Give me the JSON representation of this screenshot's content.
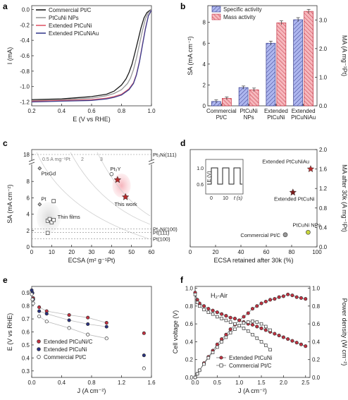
{
  "chart_data": [
    {
      "panel": "a",
      "type": "line",
      "xlabel": "E (V vs RHE)",
      "ylabel": "I (mA)",
      "xlim": [
        0.2,
        1.0
      ],
      "ylim": [
        -1.25,
        0.05
      ],
      "xticks": [
        "0.2",
        "0.4",
        "0.6",
        "0.8",
        "1.0"
      ],
      "yticks": [
        "0.0",
        "-0.2",
        "-0.4",
        "-0.6",
        "-0.8",
        "-1.0",
        "-1.2"
      ],
      "legend": "top-left",
      "series": [
        {
          "name": "Commercial Pt/C",
          "color": "#1a1a1a",
          "x": [
            0.2,
            0.4,
            0.6,
            0.7,
            0.75,
            0.8,
            0.83,
            0.85,
            0.87,
            0.89,
            0.91,
            0.93,
            0.95,
            0.97,
            0.99,
            1.0
          ],
          "y": [
            -1.17,
            -1.16,
            -1.13,
            -1.1,
            -1.06,
            -0.98,
            -0.9,
            -0.82,
            -0.71,
            -0.56,
            -0.4,
            -0.24,
            -0.11,
            -0.04,
            -0.01,
            0.0
          ]
        },
        {
          "name": "PtCuNi NPs",
          "color": "#999999",
          "x": [
            0.2,
            0.4,
            0.6,
            0.7,
            0.75,
            0.8,
            0.84,
            0.86,
            0.88,
            0.9,
            0.92,
            0.94,
            0.96,
            0.98,
            1.0
          ],
          "y": [
            -1.18,
            -1.17,
            -1.15,
            -1.12,
            -1.09,
            -1.04,
            -0.96,
            -0.89,
            -0.78,
            -0.63,
            -0.45,
            -0.27,
            -0.12,
            -0.04,
            0.0
          ]
        },
        {
          "name": "Extended PtCuNi",
          "color": "#e05a6a",
          "x": [
            0.2,
            0.4,
            0.6,
            0.7,
            0.75,
            0.8,
            0.85,
            0.88,
            0.9,
            0.92,
            0.94,
            0.96,
            0.98,
            1.0
          ],
          "y": [
            -1.19,
            -1.18,
            -1.17,
            -1.15,
            -1.13,
            -1.1,
            -1.03,
            -0.95,
            -0.84,
            -0.67,
            -0.45,
            -0.24,
            -0.08,
            -0.01
          ]
        },
        {
          "name": "Extended PtCuNiAu",
          "color": "#3a3f8f",
          "x": [
            0.2,
            0.4,
            0.6,
            0.7,
            0.75,
            0.8,
            0.85,
            0.88,
            0.9,
            0.92,
            0.94,
            0.96,
            0.98,
            1.0
          ],
          "y": [
            -1.2,
            -1.19,
            -1.18,
            -1.16,
            -1.14,
            -1.11,
            -1.04,
            -0.96,
            -0.85,
            -0.68,
            -0.46,
            -0.25,
            -0.08,
            -0.01
          ]
        }
      ]
    },
    {
      "panel": "b",
      "type": "bar",
      "ylabel": "SA (mA cm⁻²)",
      "y2label": "MA (A mg⁻¹Pt)",
      "ylim": [
        0,
        9.6
      ],
      "y2lim": [
        0,
        3.5
      ],
      "yticks": [
        "0",
        "2",
        "4",
        "6",
        "8"
      ],
      "y2ticks": [
        "0.0",
        "1.0",
        "2.0",
        "3.0"
      ],
      "categories": [
        [
          "Commercial",
          "Pt/C"
        ],
        [
          "PtCuNi",
          "NPs"
        ],
        [
          "Extended",
          "PtCuNi"
        ],
        [
          "Extended",
          "PtCuNiAu"
        ]
      ],
      "legend": "top-left",
      "series": [
        {
          "name": "Specific activity",
          "axis": "left",
          "values": [
            0.42,
            1.75,
            6.0,
            8.25
          ],
          "errors": [
            0.15,
            0.15,
            0.2,
            0.2
          ],
          "color": "#9aa5e8",
          "hatch": "#3a3f8f"
        },
        {
          "name": "Mass activity",
          "axis": "right",
          "values": [
            0.26,
            0.56,
            2.9,
            3.3
          ],
          "errors": [
            0.05,
            0.06,
            0.07,
            0.07
          ],
          "color": "#f2a5ab",
          "hatch": "#c43040"
        }
      ]
    },
    {
      "panel": "c",
      "type": "scatter",
      "xlabel": "ECSA (m² g⁻¹Pt)",
      "ylabel": "SA (mA cm⁻²)",
      "xlim": [
        0,
        60
      ],
      "ylim": [
        0,
        10
      ],
      "upper_break_value": "18",
      "xticks": [
        "0",
        "10",
        "20",
        "30",
        "40",
        "50",
        "60"
      ],
      "yticks": [
        "0",
        "2",
        "4",
        "6",
        "8"
      ],
      "iso_labels": [
        "0.5 A mg⁻¹Pt",
        "2",
        "3"
      ],
      "reference_lines": [
        {
          "label": "Pt₃Ni(111)",
          "y": 18
        },
        {
          "label": "Pt₃Ni(100)",
          "y": 2.2
        },
        {
          "label": "Pt(111)",
          "y": 1.75
        },
        {
          "label": "Pt(100)",
          "y": 1.0
        }
      ],
      "regions": [
        {
          "label": "Thin films",
          "x": 8,
          "y": 3.8
        },
        {
          "label": "This work",
          "x": 45,
          "y": 7.5
        }
      ],
      "points": [
        {
          "label": "PtxGd",
          "x": 4,
          "y": 9.6,
          "marker": "diamond"
        },
        {
          "label": "Pt",
          "x": 4,
          "y": 5.2,
          "marker": "diamond"
        },
        {
          "label": "Pt₃Y",
          "x": 40,
          "y": 8.9,
          "marker": "circle"
        },
        {
          "label": "",
          "x": 43,
          "y": 8.2,
          "marker": "star"
        },
        {
          "label": "",
          "x": 47,
          "y": 6.1,
          "marker": "star"
        },
        {
          "label": "",
          "x": 8,
          "y": 3.2,
          "marker": "square"
        },
        {
          "label": "",
          "x": 9,
          "y": 3.4,
          "marker": "square"
        },
        {
          "label": "",
          "x": 10,
          "y": 3.0,
          "marker": "square"
        },
        {
          "label": "",
          "x": 11,
          "y": 5.6,
          "marker": "square"
        },
        {
          "label": "",
          "x": 8,
          "y": 1.7,
          "marker": "square"
        },
        {
          "label": "",
          "x": 11,
          "y": 3.3,
          "marker": "square"
        }
      ]
    },
    {
      "panel": "d",
      "type": "scatter",
      "xlabel": "ECSA retained after 30k (%)",
      "ylabel": "MA after 30k (A mg⁻¹Pt)",
      "xlim": [
        0,
        100
      ],
      "ylim": [
        0,
        2.0
      ],
      "xticks": [
        "0",
        "20",
        "40",
        "60",
        "80",
        "100"
      ],
      "yticks": [
        "0.0",
        "0.4",
        "0.8",
        "1.2",
        "1.6",
        "2.0"
      ],
      "inset": {
        "xlabel": "t (s)",
        "ylabel": "E (V)",
        "xticks": [
          "0",
          "10"
        ],
        "yticks": [
          "0.6",
          "1.0"
        ]
      },
      "points": [
        {
          "label": "Extended PtCuNiAu",
          "x": 95,
          "y": 1.6,
          "color": "#b52a2a",
          "marker": "star"
        },
        {
          "label": "Extended PtCuNi",
          "x": 81,
          "y": 1.12,
          "color": "#7a1b1b",
          "marker": "star"
        },
        {
          "label": "PtCuNi NPs",
          "x": 93,
          "y": 0.3,
          "color": "#c8d63a",
          "marker": "circle"
        },
        {
          "label": "Commercial Pt/C",
          "x": 75,
          "y": 0.25,
          "color": "#9a9a9a",
          "marker": "circle"
        }
      ]
    },
    {
      "panel": "e",
      "type": "scatter",
      "xlabel": "J (A cm⁻²)",
      "ylabel": "E (V vs RHE)",
      "xlim": [
        0,
        1.6
      ],
      "ylim": [
        0.25,
        0.95
      ],
      "xticks": [
        "0.0",
        "0.4",
        "0.8",
        "1.2",
        "1.6"
      ],
      "yticks": [
        "0.3",
        "0.4",
        "0.5",
        "0.6",
        "0.7",
        "0.8",
        "0.9"
      ],
      "legend": "bottom-left",
      "series": [
        {
          "name": "Extended PtCuNi/C",
          "color": "#c43040",
          "x": [
            0.0,
            0.01,
            0.02,
            0.1,
            0.2,
            0.5,
            0.75,
            1.0,
            1.5
          ],
          "y": [
            0.92,
            0.9,
            0.86,
            0.79,
            0.76,
            0.73,
            0.71,
            0.67,
            0.59
          ]
        },
        {
          "name": "Extended PtCuNi",
          "color": "#2a3280",
          "x": [
            0.0,
            0.01,
            0.02,
            0.1,
            0.2,
            0.5,
            0.75,
            1.0,
            1.5
          ],
          "y": [
            0.92,
            0.9,
            0.85,
            0.76,
            0.74,
            0.69,
            0.66,
            0.64,
            0.42
          ]
        },
        {
          "name": "Commercial Pt/C",
          "color": "#ffffff",
          "x": [
            0.0,
            0.01,
            0.02,
            0.1,
            0.2,
            0.5,
            0.75,
            1.0,
            1.5
          ],
          "y": [
            0.89,
            0.85,
            0.82,
            0.72,
            0.68,
            0.63,
            0.58,
            0.55,
            0.32
          ]
        }
      ]
    },
    {
      "panel": "f",
      "type": "line",
      "annotation": "H₂-Air",
      "xlabel": "J (A cm⁻²)",
      "ylabel": "Cell voltage (V)",
      "y2label": "Power density (W cm⁻²)",
      "xlim": [
        0,
        2.6
      ],
      "ylim": [
        0,
        1.02
      ],
      "y2lim": [
        0,
        1.02
      ],
      "xticks": [
        "0.0",
        "0.5",
        "1.0",
        "1.5",
        "2.0",
        "2.5"
      ],
      "yticks": [
        "0.0",
        "0.2",
        "0.4",
        "0.6",
        "0.8",
        "1.0"
      ],
      "y2ticks": [
        "0.0",
        "0.2",
        "0.4",
        "0.6",
        "0.8",
        "1.0"
      ],
      "legend": "bottom-center",
      "series": [
        {
          "name": "Extended PtCuNi",
          "kind": "polarization",
          "color": "#c43040",
          "x": [
            0.0,
            0.05,
            0.1,
            0.2,
            0.3,
            0.4,
            0.5,
            0.6,
            0.7,
            0.8,
            0.9,
            1.0,
            1.1,
            1.2,
            1.3,
            1.4,
            1.5,
            1.6,
            1.7,
            1.8,
            1.9,
            2.0,
            2.1,
            2.2,
            2.3,
            2.4,
            2.5
          ],
          "y": [
            0.95,
            0.87,
            0.83,
            0.8,
            0.77,
            0.75,
            0.73,
            0.71,
            0.69,
            0.67,
            0.66,
            0.64,
            0.62,
            0.6,
            0.59,
            0.57,
            0.55,
            0.53,
            0.51,
            0.49,
            0.47,
            0.45,
            0.43,
            0.41,
            0.39,
            0.37,
            0.35
          ]
        },
        {
          "name": "Extended PtCuNi",
          "kind": "power",
          "color": "#c43040",
          "x": [
            0.0,
            0.05,
            0.1,
            0.2,
            0.3,
            0.4,
            0.5,
            0.6,
            0.7,
            0.8,
            0.9,
            1.0,
            1.1,
            1.2,
            1.3,
            1.4,
            1.5,
            1.6,
            1.7,
            1.8,
            1.9,
            2.0,
            2.1,
            2.2,
            2.3,
            2.4,
            2.5
          ],
          "y": [
            0.0,
            0.04,
            0.08,
            0.16,
            0.23,
            0.3,
            0.37,
            0.43,
            0.48,
            0.54,
            0.59,
            0.64,
            0.68,
            0.72,
            0.77,
            0.8,
            0.83,
            0.85,
            0.87,
            0.88,
            0.9,
            0.91,
            0.93,
            0.92,
            0.9,
            0.89,
            0.88
          ]
        },
        {
          "name": "Commercial Pt/C",
          "kind": "polarization",
          "color": "#ffffff",
          "x": [
            0.0,
            0.05,
            0.1,
            0.2,
            0.3,
            0.4,
            0.5,
            0.6,
            0.7,
            0.8,
            0.9,
            1.0,
            1.1,
            1.2,
            1.3,
            1.4,
            1.5,
            1.6,
            1.7
          ],
          "y": [
            0.93,
            0.84,
            0.8,
            0.76,
            0.73,
            0.71,
            0.68,
            0.66,
            0.64,
            0.62,
            0.6,
            0.58,
            0.55,
            0.52,
            0.48,
            0.44,
            0.4,
            0.36,
            0.31
          ]
        },
        {
          "name": "Commercial Pt/C",
          "kind": "power",
          "color": "#ffffff",
          "x": [
            0.0,
            0.05,
            0.1,
            0.2,
            0.3,
            0.4,
            0.5,
            0.6,
            0.7,
            0.8,
            0.9,
            1.0,
            1.1,
            1.2,
            1.3,
            1.4,
            1.5,
            1.6,
            1.7
          ],
          "y": [
            0.0,
            0.04,
            0.08,
            0.15,
            0.22,
            0.28,
            0.34,
            0.4,
            0.45,
            0.5,
            0.54,
            0.58,
            0.61,
            0.62,
            0.63,
            0.62,
            0.6,
            0.57,
            0.53
          ]
        }
      ]
    }
  ]
}
